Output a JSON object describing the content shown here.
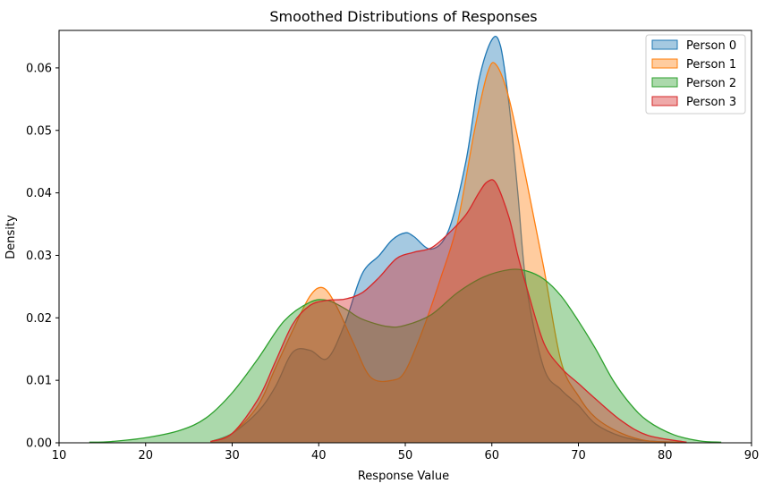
{
  "chart_data": {
    "type": "area",
    "title": "Smoothed Distributions of Responses",
    "xlabel": "Response Value",
    "ylabel": "Density",
    "xlim": [
      10,
      90
    ],
    "ylim": [
      0,
      0.066
    ],
    "xticks": [
      10,
      20,
      30,
      40,
      50,
      60,
      70,
      80,
      90
    ],
    "yticks": [
      0.0,
      0.01,
      0.02,
      0.03,
      0.04,
      0.05,
      0.06
    ],
    "ytick_labels": [
      "0.00",
      "0.01",
      "0.02",
      "0.03",
      "0.04",
      "0.05",
      "0.06"
    ],
    "grid": false,
    "legend_position": "top-right",
    "series": [
      {
        "name": "Person 0",
        "color": "#1f77b4",
        "x": [
          27.5,
          30,
          33,
          35,
          37,
          39,
          41,
          43,
          45,
          47,
          48.5,
          50,
          51,
          53,
          55,
          57,
          58.5,
          60,
          61,
          62,
          63,
          64,
          66,
          68,
          70,
          72,
          75,
          78,
          82
        ],
        "y": [
          0.0002,
          0.0015,
          0.005,
          0.009,
          0.0145,
          0.0148,
          0.0135,
          0.019,
          0.027,
          0.03,
          0.0325,
          0.0336,
          0.033,
          0.031,
          0.034,
          0.045,
          0.058,
          0.0645,
          0.0635,
          0.054,
          0.04,
          0.025,
          0.012,
          0.0085,
          0.006,
          0.003,
          0.001,
          0.0003,
          0.0001
        ]
      },
      {
        "name": "Person 1",
        "color": "#ff7f0e",
        "x": [
          27.5,
          30,
          33,
          35,
          37,
          39,
          40.5,
          42,
          44,
          46,
          48.5,
          50,
          52,
          54,
          56,
          58,
          59.5,
          60.5,
          62,
          64,
          66,
          68,
          70,
          72,
          75,
          78,
          82
        ],
        "y": [
          0.0002,
          0.0015,
          0.006,
          0.012,
          0.018,
          0.0235,
          0.0248,
          0.022,
          0.016,
          0.0105,
          0.01,
          0.0115,
          0.018,
          0.026,
          0.035,
          0.05,
          0.0592,
          0.0605,
          0.055,
          0.042,
          0.028,
          0.013,
          0.0075,
          0.004,
          0.0015,
          0.0003,
          0.0001
        ]
      },
      {
        "name": "Person 2",
        "color": "#2ca02c",
        "x": [
          13.5,
          16,
          20,
          24,
          27,
          30,
          33,
          36,
          39,
          41,
          43,
          45,
          48,
          50,
          53,
          56,
          59,
          62,
          64,
          66,
          68,
          70,
          72,
          74,
          76,
          78,
          81,
          84,
          86.5
        ],
        "y": [
          0.0001,
          0.0002,
          0.0008,
          0.002,
          0.004,
          0.008,
          0.0135,
          0.0195,
          0.0225,
          0.0228,
          0.0215,
          0.0198,
          0.0186,
          0.0188,
          0.0205,
          0.024,
          0.0265,
          0.0277,
          0.0275,
          0.0262,
          0.0235,
          0.0195,
          0.015,
          0.01,
          0.0062,
          0.0035,
          0.0013,
          0.0003,
          0.0001
        ]
      },
      {
        "name": "Person 3",
        "color": "#d62728",
        "x": [
          27.5,
          30,
          33,
          35,
          37,
          39,
          41,
          43,
          45,
          47,
          49,
          51,
          53,
          55,
          57,
          58.5,
          59.5,
          60.5,
          62,
          63,
          64,
          66,
          68,
          70,
          72,
          75,
          78,
          82.5
        ],
        "y": [
          0.0002,
          0.0015,
          0.007,
          0.013,
          0.019,
          0.022,
          0.0228,
          0.023,
          0.024,
          0.0265,
          0.0295,
          0.0305,
          0.0312,
          0.0335,
          0.0365,
          0.04,
          0.0418,
          0.0415,
          0.036,
          0.03,
          0.025,
          0.016,
          0.012,
          0.0095,
          0.007,
          0.0035,
          0.0012,
          0.0001
        ]
      }
    ]
  }
}
